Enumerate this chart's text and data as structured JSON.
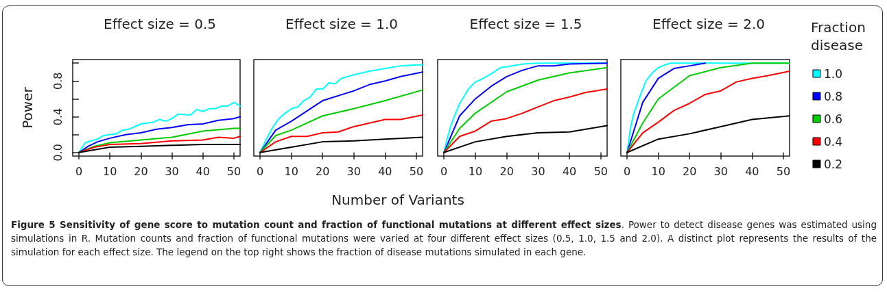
{
  "chart_data": [
    {
      "type": "line",
      "title": "Effect size = 0.5",
      "ylabel": "Power",
      "xlim": [
        -2,
        52
      ],
      "xticks": [
        0,
        10,
        20,
        30,
        40,
        50
      ],
      "ylim": [
        -0.04,
        1.04
      ],
      "yticks": [
        {
          "value": 0,
          "label": "0.0"
        },
        {
          "value": 0.2,
          "label": null
        },
        0.4,
        {
          "value": 0.6,
          "label": null
        },
        0.8,
        {
          "value": 1.0,
          "label": null
        }
      ],
      "annotations": [
        "Figure 5 Sensitivity of gene score to mutation count and fraction of functional mutations at different effect sizes",
        ". Power to detect disease genes was estimated using simulations in R. Mutation counts and fraction of functional mutations were varied at four different effect sizes (0.5, 1.0, 1.5 and 2.0). A distinct plot represents the results of the simulation for each effect size. The legend on the top right shows the fraction of disease mutations simulated in each gene."
      ],
      "series": [
        {
          "color": "#00ffff",
          "x": [
            0,
            2,
            4,
            6,
            8,
            12,
            14,
            16,
            20,
            24,
            26,
            28,
            30,
            32,
            36,
            38,
            40,
            42,
            44,
            46,
            48,
            50,
            52
          ],
          "values": [
            0,
            0.11,
            0.13,
            0.15,
            0.19,
            0.21,
            0.25,
            0.26,
            0.32,
            0.34,
            0.37,
            0.35,
            0.38,
            0.43,
            0.42,
            0.48,
            0.46,
            0.49,
            0.49,
            0.52,
            0.52,
            0.56,
            0.52
          ]
        },
        {
          "color": "#0000ff",
          "x": [
            0,
            3,
            6,
            10,
            15,
            20,
            25,
            30,
            35,
            40,
            45,
            50,
            52
          ],
          "values": [
            0,
            0.07,
            0.12,
            0.16,
            0.2,
            0.22,
            0.26,
            0.28,
            0.31,
            0.32,
            0.36,
            0.38,
            0.4
          ]
        },
        {
          "color": "#00cc00",
          "x": [
            0,
            5,
            10,
            20,
            30,
            40,
            50,
            52
          ],
          "values": [
            0,
            0.07,
            0.11,
            0.14,
            0.17,
            0.24,
            0.27,
            0.27
          ]
        },
        {
          "color": "#ff0000",
          "x": [
            0,
            5,
            10,
            20,
            30,
            40,
            45,
            50,
            52
          ],
          "values": [
            0,
            0.06,
            0.09,
            0.1,
            0.13,
            0.14,
            0.17,
            0.16,
            0.18
          ]
        },
        {
          "color": "#000000",
          "x": [
            0,
            10,
            20,
            30,
            40,
            52
          ],
          "values": [
            0,
            0.06,
            0.07,
            0.08,
            0.09,
            0.09
          ]
        }
      ]
    },
    {
      "type": "line",
      "title": "Effect size = 1.0",
      "xlabel": "Number of Variants",
      "xlim": [
        -2,
        52
      ],
      "xticks": [
        0,
        10,
        20,
        30,
        40,
        50
      ],
      "ylim": [
        -0.04,
        1.04
      ],
      "tick_labels": "x",
      "series": [
        {
          "color": "#00ffff",
          "x": [
            0,
            2,
            4,
            6,
            8,
            10,
            12,
            14,
            16,
            18,
            20,
            22,
            24,
            26,
            30,
            35,
            40,
            45,
            50,
            52
          ],
          "values": [
            0,
            0.15,
            0.28,
            0.38,
            0.44,
            0.49,
            0.51,
            0.58,
            0.62,
            0.71,
            0.71,
            0.78,
            0.77,
            0.83,
            0.87,
            0.91,
            0.94,
            0.97,
            0.98,
            0.98
          ]
        },
        {
          "color": "#0000ff",
          "x": [
            0,
            5,
            10,
            20,
            30,
            35,
            40,
            45,
            52
          ],
          "values": [
            0,
            0.25,
            0.35,
            0.58,
            0.69,
            0.76,
            0.8,
            0.85,
            0.9
          ]
        },
        {
          "color": "#00cc00",
          "x": [
            0,
            5,
            10,
            20,
            30,
            40,
            52
          ],
          "values": [
            0,
            0.19,
            0.25,
            0.41,
            0.49,
            0.58,
            0.7
          ]
        },
        {
          "color": "#ff0000",
          "x": [
            0,
            5,
            10,
            15,
            20,
            25,
            30,
            35,
            40,
            45,
            52
          ],
          "values": [
            0,
            0.12,
            0.18,
            0.18,
            0.22,
            0.23,
            0.29,
            0.33,
            0.37,
            0.37,
            0.42
          ]
        },
        {
          "color": "#000000",
          "x": [
            0,
            10,
            20,
            30,
            40,
            52
          ],
          "values": [
            0,
            0.06,
            0.12,
            0.13,
            0.15,
            0.17
          ]
        }
      ]
    },
    {
      "type": "line",
      "title": "Effect size = 1.5",
      "xlim": [
        -2,
        52
      ],
      "xticks": [
        0,
        10,
        20,
        30,
        40,
        50
      ],
      "ylim": [
        -0.04,
        1.04
      ],
      "tick_labels": "x",
      "series": [
        {
          "color": "#00ffff",
          "x": [
            0,
            1,
            2,
            3,
            5,
            8,
            10,
            12,
            15,
            18,
            20,
            25,
            30,
            52
          ],
          "values": [
            0,
            0.15,
            0.28,
            0.38,
            0.55,
            0.72,
            0.79,
            0.82,
            0.88,
            0.95,
            0.96,
            0.99,
            1.0,
            1.0
          ]
        },
        {
          "color": "#0000ff",
          "x": [
            0,
            5,
            10,
            15,
            20,
            25,
            30,
            35,
            40,
            52
          ],
          "values": [
            0,
            0.41,
            0.6,
            0.74,
            0.85,
            0.92,
            0.97,
            0.97,
            0.99,
            1.0
          ]
        },
        {
          "color": "#00cc00",
          "x": [
            0,
            5,
            10,
            20,
            30,
            40,
            52
          ],
          "values": [
            0,
            0.27,
            0.44,
            0.68,
            0.81,
            0.89,
            0.95
          ]
        },
        {
          "color": "#ff0000",
          "x": [
            0,
            5,
            10,
            15,
            20,
            25,
            30,
            35,
            40,
            45,
            52
          ],
          "values": [
            0,
            0.18,
            0.24,
            0.35,
            0.38,
            0.44,
            0.51,
            0.58,
            0.62,
            0.67,
            0.71
          ]
        },
        {
          "color": "#000000",
          "x": [
            0,
            10,
            20,
            30,
            40,
            52
          ],
          "values": [
            0,
            0.12,
            0.18,
            0.22,
            0.23,
            0.3
          ]
        }
      ]
    },
    {
      "type": "line",
      "title": "Effect size = 2.0",
      "legend_title": "Fraction\ndisease",
      "legend": "right",
      "xlim": [
        -2,
        52
      ],
      "xticks": [
        0,
        10,
        20,
        30,
        40,
        50
      ],
      "ylim": [
        -0.04,
        1.04
      ],
      "tick_labels": "x",
      "series": [
        {
          "name": "1.0",
          "color": "#00ffff",
          "x": [
            0,
            1,
            2,
            4,
            6,
            8,
            10,
            12,
            14,
            52
          ],
          "values": [
            0,
            0.26,
            0.42,
            0.62,
            0.8,
            0.89,
            0.95,
            0.98,
            1.0,
            1.0
          ]
        },
        {
          "name": "0.8",
          "color": "#0000ff",
          "x": [
            0,
            5,
            10,
            15,
            20,
            25
          ],
          "values": [
            0,
            0.56,
            0.83,
            0.94,
            0.97,
            1.0
          ]
        },
        {
          "name": "0.6",
          "color": "#00cc00",
          "x": [
            0,
            5,
            10,
            20,
            30,
            40,
            52
          ],
          "values": [
            0,
            0.33,
            0.6,
            0.86,
            0.95,
            1.0,
            1.0
          ]
        },
        {
          "name": "0.4",
          "color": "#ff0000",
          "x": [
            0,
            5,
            10,
            15,
            20,
            25,
            30,
            35,
            40,
            45,
            52
          ],
          "values": [
            0,
            0.22,
            0.34,
            0.47,
            0.55,
            0.65,
            0.69,
            0.79,
            0.83,
            0.86,
            0.91
          ]
        },
        {
          "name": "0.2",
          "color": "#000000",
          "x": [
            0,
            10,
            20,
            30,
            40,
            52
          ],
          "values": [
            0,
            0.15,
            0.21,
            0.29,
            0.37,
            0.41
          ]
        }
      ]
    }
  ]
}
